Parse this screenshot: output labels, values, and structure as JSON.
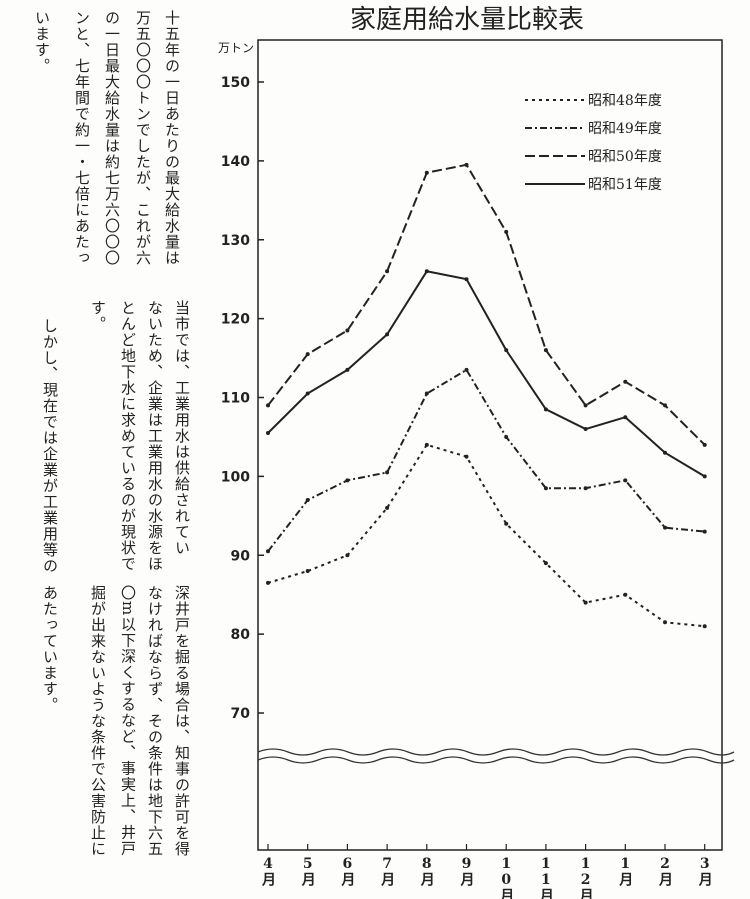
{
  "chart_data": {
    "type": "line",
    "title": "家庭用給水量比較表",
    "y_label": "万トン",
    "categories": [
      "4月",
      "5月",
      "6月",
      "7月",
      "8月",
      "9月",
      "10月",
      "11月",
      "12月",
      "1月",
      "2月",
      "3月"
    ],
    "ylim": [
      70,
      150
    ],
    "yticks": [
      70,
      80,
      90,
      100,
      110,
      120,
      130,
      140,
      150
    ],
    "series": [
      {
        "name": "昭和48年度",
        "color": "#222",
        "dash": "3 4",
        "values": [
          86.5,
          88,
          90,
          96,
          104,
          102.5,
          94,
          89,
          84,
          85,
          81.5,
          81
        ]
      },
      {
        "name": "昭和49年度",
        "color": "#222",
        "dash": "7 3 2 3",
        "values": [
          90.5,
          97,
          99.5,
          100.5,
          110.5,
          113.5,
          105,
          98.5,
          98.5,
          99.5,
          93.5,
          93
        ]
      },
      {
        "name": "昭和50年度",
        "color": "#222",
        "dash": "10 4",
        "values": [
          109,
          115.5,
          118.5,
          126,
          138.5,
          139.5,
          131,
          116,
          109,
          112,
          109,
          104
        ]
      },
      {
        "name": "昭和51年度",
        "color": "#222",
        "dash": "",
        "values": [
          105.5,
          110.5,
          113.5,
          118,
          126,
          125,
          116,
          108.5,
          106,
          107.5,
          103,
          100
        ]
      }
    ],
    "annotations": [
      "十五年の一日あたりの最大給水量は",
      "万五〇〇〇トンでしたが、これが六",
      "の一日最大給水量は約七万六〇〇〇",
      "ンと、七年間で約一・七倍にあたっ",
      "います。",
      "当市では、工業用水は供給されてい",
      "ないため、企業は工業用水の水源をほ",
      "とんど地下水に求めているのが現状で",
      "す。",
      "しかし、現在では企業が工業用等の",
      "深井戸を掘る場合は、知事の許可を得",
      "なければならず、その条件は地下六五",
      "〇m以下深くするなど、事実上、井戸",
      "掘が出来ないような条件で公害防止に",
      "あたっています。"
    ]
  }
}
